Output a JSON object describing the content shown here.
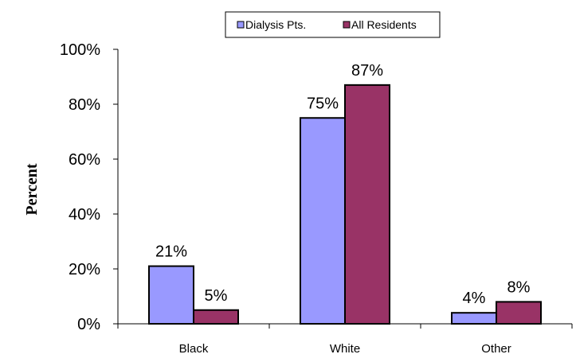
{
  "chart_data": {
    "type": "bar",
    "categories": [
      "Black",
      "White",
      "Other"
    ],
    "series": [
      {
        "name": "Dialysis Pts.",
        "values": [
          21,
          75,
          4
        ],
        "labels": [
          "21%",
          "75%",
          "4%"
        ]
      },
      {
        "name": "All Residents",
        "values": [
          5,
          87,
          8
        ],
        "labels": [
          "5%",
          "87%",
          "8%"
        ]
      }
    ],
    "ylabel": "Percent",
    "ylim": [
      0,
      100
    ],
    "yticks": [
      0,
      20,
      40,
      60,
      80,
      100
    ],
    "ytick_labels": [
      "0%",
      "20%",
      "40%",
      "60%",
      "80%",
      "100%"
    ],
    "grid": false,
    "legend_position": "top",
    "colors": {
      "series": [
        "#9999ff",
        "#993366"
      ]
    }
  }
}
